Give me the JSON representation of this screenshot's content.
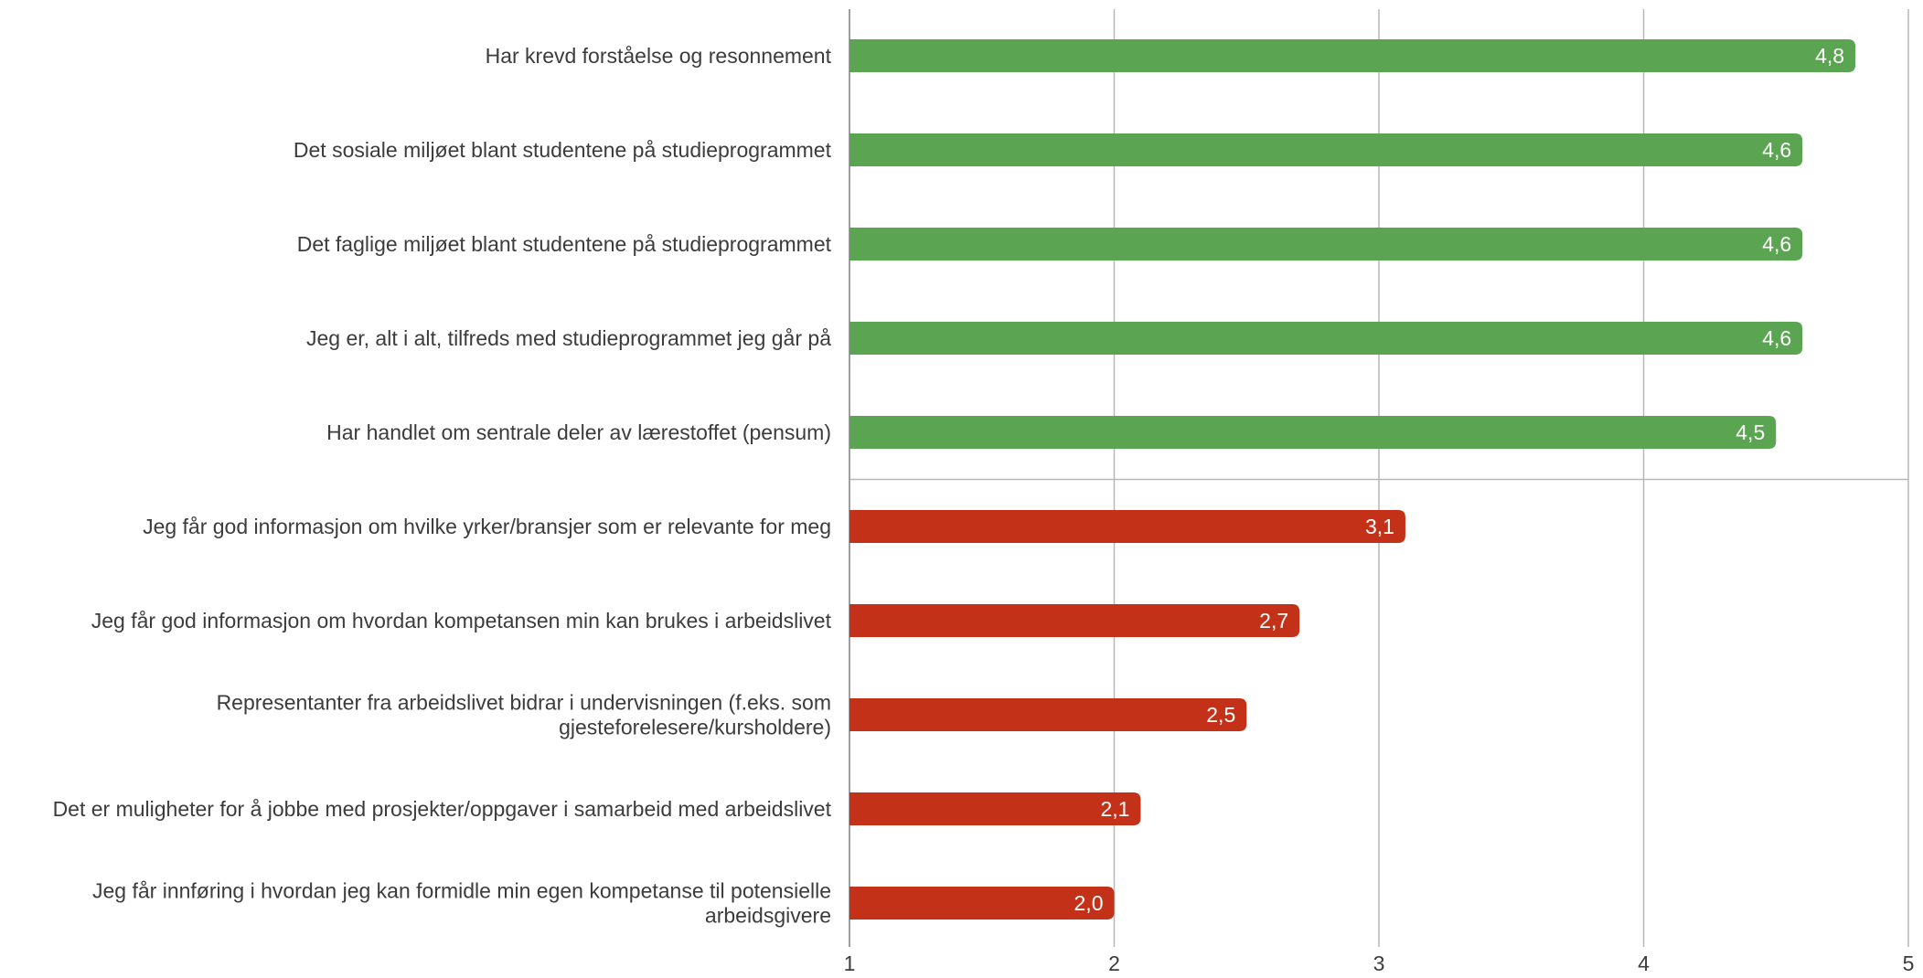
{
  "chart_data": {
    "type": "bar",
    "orientation": "horizontal",
    "categories": [
      [
        "Har krevd forståelse og resonnement"
      ],
      [
        "Det sosiale miljøet blant studentene på studieprogrammet"
      ],
      [
        "Det faglige miljøet blant studentene på studieprogrammet"
      ],
      [
        "Jeg er, alt i alt, tilfreds med studieprogrammet jeg går på"
      ],
      [
        "Har handlet om sentrale deler av lærestoffet (pensum)"
      ],
      [
        "Jeg får god informasjon om hvilke yrker/bransjer som er relevante for meg"
      ],
      [
        "Jeg får god informasjon om hvordan kompetansen min kan brukes i arbeidslivet"
      ],
      [
        "Representanter fra arbeidslivet bidrar i undervisningen (f.eks. som",
        "gjesteforelesere/kursholdere)"
      ],
      [
        "Det er muligheter for å jobbe med prosjekter/oppgaver i samarbeid med arbeidslivet"
      ],
      [
        "Jeg får innføring i hvordan jeg kan formidle min egen kompetanse til potensielle",
        "arbeidsgivere"
      ]
    ],
    "values": [
      4.8,
      4.6,
      4.6,
      4.6,
      4.5,
      3.1,
      2.7,
      2.5,
      2.1,
      2.0
    ],
    "value_labels": [
      "4,8",
      "4,6",
      "4,6",
      "4,6",
      "4,5",
      "3,1",
      "2,7",
      "2,5",
      "2,1",
      "2,0"
    ],
    "bar_colors": [
      "#5ba552",
      "#5ba552",
      "#5ba552",
      "#5ba552",
      "#5ba552",
      "#c33218",
      "#c33218",
      "#c33218",
      "#c33218",
      "#c33218"
    ],
    "xlim": [
      1,
      5
    ],
    "xticks": [
      1,
      2,
      3,
      4,
      5
    ],
    "xtick_labels": [
      "1",
      "2",
      "3",
      "4",
      "5"
    ],
    "grid": true,
    "separator_after_index": 4,
    "title": "",
    "xlabel": "",
    "ylabel": ""
  }
}
